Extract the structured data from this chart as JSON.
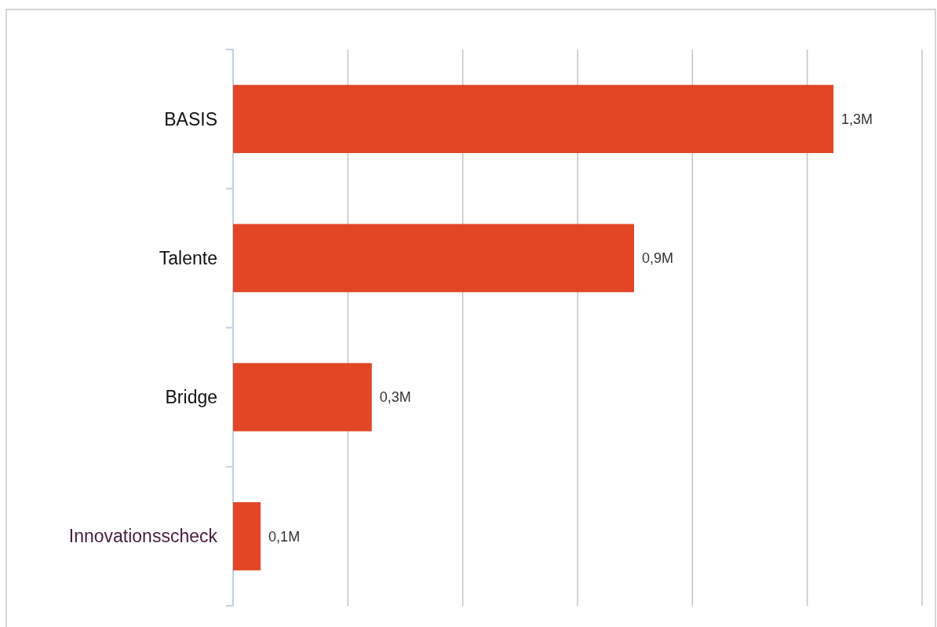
{
  "chart_data": {
    "type": "bar",
    "orientation": "horizontal",
    "categories": [
      "BASIS",
      "Talente",
      "Bridge",
      "Innovationsscheck"
    ],
    "values": [
      1.307,
      0.873,
      0.302,
      0.06
    ],
    "value_labels": [
      "1,3M",
      "0,9M",
      "0,3M",
      "0,1M"
    ],
    "color": "#e24624",
    "xlim": [
      0,
      1.5
    ],
    "xticks": [
      {
        "value": 0,
        "label": null
      },
      {
        "value": 0.25,
        "label": null
      },
      {
        "value": 0.5,
        "label": null
      },
      {
        "value": 0.75,
        "label": null
      },
      {
        "value": 1,
        "label": null
      },
      {
        "value": 1.25,
        "label": null
      },
      {
        "value": 1.5,
        "label": null
      }
    ],
    "grid": "x"
  }
}
